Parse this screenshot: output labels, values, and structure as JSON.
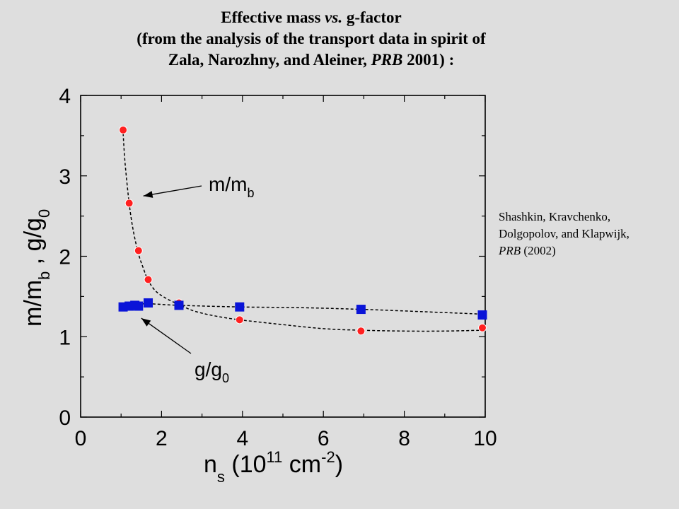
{
  "header": {
    "line1_a": "Effective mass ",
    "line1_b": "vs.",
    "line1_c": " g-factor",
    "line2": "(from the analysis of the transport data in spirit of",
    "line3_a": "Zala, Narozhny, and Aleiner, ",
    "line3_b": "PRB",
    "line3_c": " 2001) :"
  },
  "credit": {
    "line1": "Shashkin, Kravchenko,",
    "line2": "Dolgopolov, and Klapwijk,",
    "line3_a": "PRB",
    "line3_b": "  (2002)"
  },
  "colors": {
    "mass": "#ff2020",
    "g": "#0a14d8",
    "curve": "#000000"
  },
  "chart_data": {
    "type": "scatter",
    "xlim": [
      0,
      10
    ],
    "ylim": [
      0,
      4
    ],
    "xticks": [
      0,
      2,
      4,
      6,
      8,
      10
    ],
    "yticks": [
      0,
      1,
      2,
      3,
      4
    ],
    "xlabel": {
      "main": "n",
      "sub": "s",
      "rest": " (10",
      "sup1": "11",
      "unit": " cm",
      "sup2": "-2",
      "close": ")"
    },
    "ylabel": {
      "m": "m/m",
      "msub": "b",
      "sep": " , ",
      "g": "g/g",
      "gsub": "0"
    },
    "series": [
      {
        "name": "m/m_b",
        "marker": "circle",
        "x": [
          1.05,
          1.2,
          1.43,
          1.67,
          2.43,
          3.93,
          6.93,
          9.93
        ],
        "y": [
          3.57,
          2.66,
          2.07,
          1.71,
          1.42,
          1.21,
          1.07,
          1.11
        ]
      },
      {
        "name": "g/g_0",
        "marker": "square",
        "x": [
          1.05,
          1.2,
          1.34,
          1.43,
          1.67,
          2.43,
          3.93,
          6.93,
          9.93
        ],
        "y": [
          1.37,
          1.38,
          1.39,
          1.38,
          1.42,
          1.39,
          1.37,
          1.34,
          1.27
        ]
      }
    ],
    "annotations": [
      {
        "series": "m/m_b",
        "text": "m/m",
        "sub": "b",
        "pointer_x": 1.55,
        "pointer_y": 2.75
      },
      {
        "series": "g/g_0",
        "text": "g/g",
        "sub": "0",
        "pointer_x": 1.5,
        "pointer_y": 1.23
      }
    ],
    "fit_curves": [
      {
        "series": "m/m_b",
        "style": "dashed",
        "x": [
          1.05,
          1.1,
          1.2,
          1.3,
          1.43,
          1.55,
          1.67,
          1.85,
          2.1,
          2.43,
          2.8,
          3.3,
          3.93,
          5.0,
          6.0,
          6.93,
          8.0,
          9.0,
          9.93
        ],
        "y": [
          3.53,
          3.15,
          2.66,
          2.32,
          2.03,
          1.85,
          1.7,
          1.57,
          1.48,
          1.4,
          1.32,
          1.26,
          1.21,
          1.15,
          1.1,
          1.08,
          1.07,
          1.07,
          1.08
        ]
      },
      {
        "series": "g/g_0",
        "style": "dashed",
        "x": [
          1.05,
          1.43,
          1.67,
          2.43,
          3.93,
          5.5,
          6.93,
          8.5,
          9.93
        ],
        "y": [
          1.38,
          1.4,
          1.41,
          1.39,
          1.37,
          1.36,
          1.34,
          1.31,
          1.28
        ]
      }
    ]
  }
}
